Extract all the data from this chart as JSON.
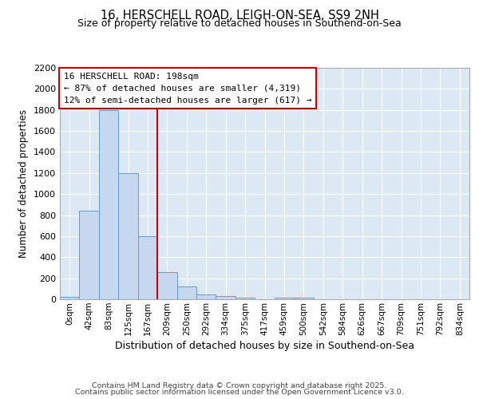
{
  "title1": "16, HERSCHELL ROAD, LEIGH-ON-SEA, SS9 2NH",
  "title2": "Size of property relative to detached houses in Southend-on-Sea",
  "xlabel": "Distribution of detached houses by size in Southend-on-Sea",
  "ylabel": "Number of detached properties",
  "bin_labels": [
    "0sqm",
    "42sqm",
    "83sqm",
    "125sqm",
    "167sqm",
    "209sqm",
    "250sqm",
    "292sqm",
    "334sqm",
    "375sqm",
    "417sqm",
    "459sqm",
    "500sqm",
    "542sqm",
    "584sqm",
    "626sqm",
    "667sqm",
    "709sqm",
    "751sqm",
    "792sqm",
    "834sqm"
  ],
  "bar_values": [
    25,
    840,
    1800,
    1200,
    600,
    255,
    125,
    48,
    28,
    15,
    0,
    14,
    14,
    0,
    0,
    0,
    0,
    0,
    0,
    0,
    0
  ],
  "bar_color": "#c5d8ef",
  "bar_edge_color": "#6699cc",
  "property_line_bin": 5,
  "annotation_title": "16 HERSCHELL ROAD: 198sqm",
  "annotation_line1": "← 87% of detached houses are smaller (4,319)",
  "annotation_line2": "12% of semi-detached houses are larger (617) →",
  "annotation_box_color": "#cc0000",
  "ylim": [
    0,
    2200
  ],
  "yticks": [
    0,
    200,
    400,
    600,
    800,
    1000,
    1200,
    1400,
    1600,
    1800,
    2000,
    2200
  ],
  "footer1": "Contains HM Land Registry data © Crown copyright and database right 2025.",
  "footer2": "Contains public sector information licensed under the Open Government Licence v3.0.",
  "fig_bg_color": "#ffffff",
  "plot_bg_color": "#dde8f5",
  "grid_color": "#ffffff",
  "spine_color": "#aaaaaa"
}
